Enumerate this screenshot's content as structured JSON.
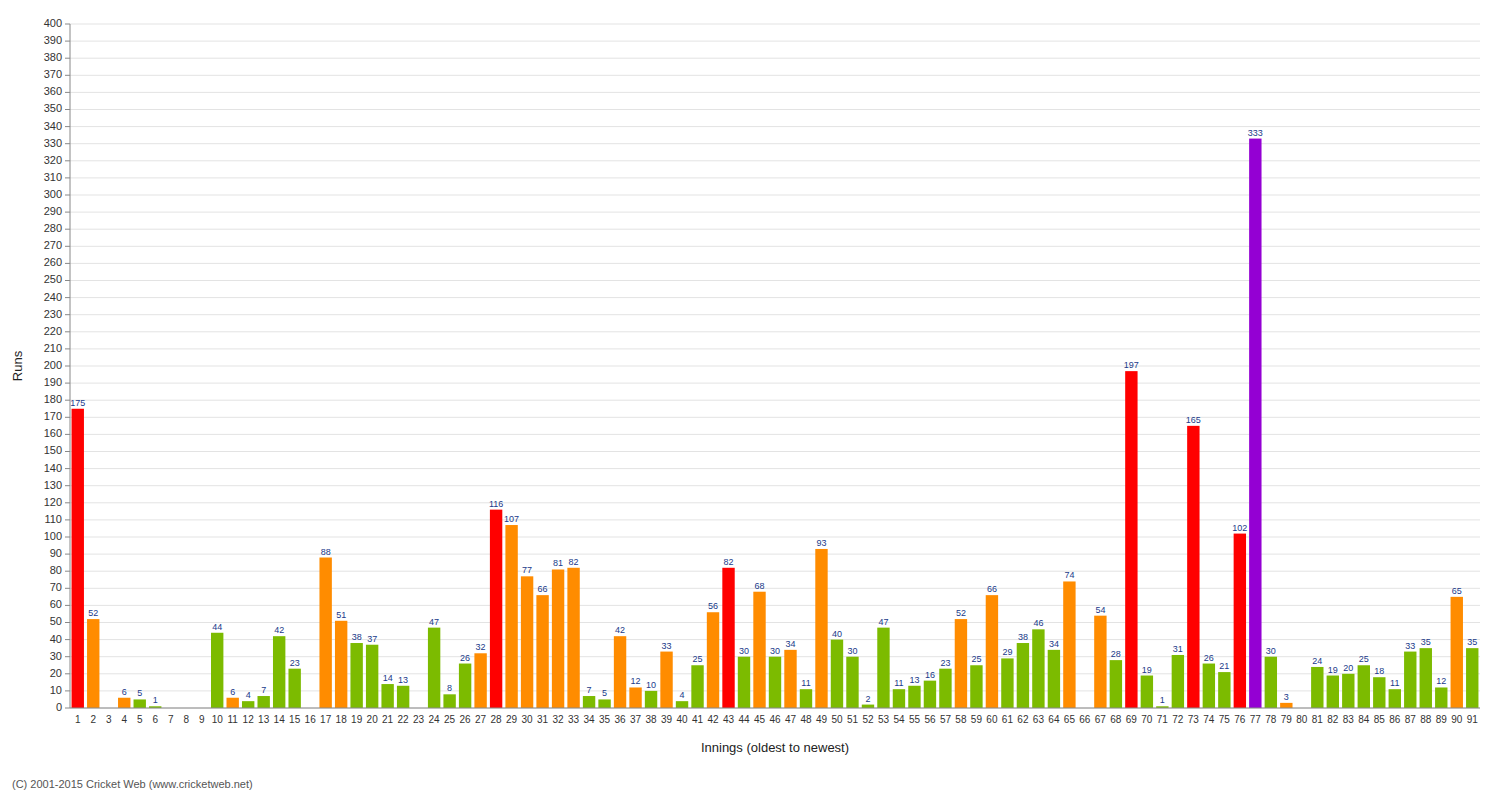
{
  "chart_data": {
    "type": "bar",
    "xlabel": "Innings (oldest to newest)",
    "ylabel": "Runs",
    "annotations": [
      "(C) 2001-2015 Cricket Web (www.cricketweb.net)"
    ],
    "categories": [
      "1",
      "2",
      "3",
      "4",
      "5",
      "6",
      "7",
      "8",
      "9",
      "10",
      "11",
      "12",
      "13",
      "14",
      "15",
      "16",
      "17",
      "18",
      "19",
      "20",
      "21",
      "22",
      "23",
      "24",
      "25",
      "26",
      "27",
      "28",
      "29",
      "30",
      "31",
      "32",
      "33",
      "34",
      "35",
      "36",
      "37",
      "38",
      "39",
      "40",
      "41",
      "42",
      "43",
      "44",
      "45",
      "46",
      "47",
      "48",
      "49",
      "50",
      "51",
      "52",
      "53",
      "54",
      "55",
      "56",
      "57",
      "58",
      "59",
      "60",
      "61",
      "62",
      "63",
      "64",
      "65",
      "66",
      "67",
      "68",
      "69",
      "70",
      "71",
      "72",
      "73",
      "74",
      "75",
      "76",
      "77",
      "78",
      "79",
      "80",
      "81",
      "82",
      "83",
      "84",
      "85",
      "86",
      "87",
      "88",
      "89",
      "90",
      "91"
    ],
    "values": [
      175,
      52,
      0,
      6,
      5,
      1,
      0,
      0,
      0,
      44,
      6,
      4,
      7,
      42,
      23,
      0,
      88,
      51,
      38,
      37,
      14,
      13,
      0,
      47,
      8,
      26,
      32,
      116,
      107,
      77,
      66,
      81,
      82,
      7,
      5,
      42,
      12,
      10,
      33,
      4,
      25,
      56,
      82,
      30,
      68,
      30,
      34,
      11,
      93,
      40,
      30,
      2,
      47,
      11,
      13,
      16,
      23,
      52,
      25,
      66,
      29,
      38,
      46,
      34,
      74,
      0,
      54,
      28,
      197,
      19,
      1,
      31,
      165,
      26,
      21,
      102,
      333,
      30,
      3,
      0,
      24,
      19,
      20,
      25,
      18,
      11,
      33,
      35,
      12,
      65,
      35
    ],
    "colors": [
      "#ff0000",
      "#ff8c00",
      "#7cbb00",
      "#ff8c00",
      "#7cbb00",
      "#7cbb00",
      "#7cbb00",
      "#7cbb00",
      "#7cbb00",
      "#7cbb00",
      "#ff8c00",
      "#7cbb00",
      "#7cbb00",
      "#7cbb00",
      "#7cbb00",
      "#7cbb00",
      "#ff8c00",
      "#ff8c00",
      "#7cbb00",
      "#7cbb00",
      "#7cbb00",
      "#7cbb00",
      "#7cbb00",
      "#7cbb00",
      "#7cbb00",
      "#7cbb00",
      "#ff8c00",
      "#ff0000",
      "#ff8c00",
      "#ff8c00",
      "#ff8c00",
      "#ff8c00",
      "#ff8c00",
      "#7cbb00",
      "#7cbb00",
      "#ff8c00",
      "#ff8c00",
      "#7cbb00",
      "#ff8c00",
      "#7cbb00",
      "#7cbb00",
      "#ff8c00",
      "#ff0000",
      "#7cbb00",
      "#ff8c00",
      "#7cbb00",
      "#ff8c00",
      "#7cbb00",
      "#ff8c00",
      "#7cbb00",
      "#7cbb00",
      "#7cbb00",
      "#7cbb00",
      "#7cbb00",
      "#7cbb00",
      "#7cbb00",
      "#7cbb00",
      "#ff8c00",
      "#7cbb00",
      "#ff8c00",
      "#7cbb00",
      "#7cbb00",
      "#7cbb00",
      "#7cbb00",
      "#ff8c00",
      "#7cbb00",
      "#ff8c00",
      "#7cbb00",
      "#ff0000",
      "#7cbb00",
      "#7cbb00",
      "#7cbb00",
      "#ff0000",
      "#7cbb00",
      "#7cbb00",
      "#ff0000",
      "#9400d3",
      "#7cbb00",
      "#ff8c00",
      "#7cbb00",
      "#7cbb00",
      "#7cbb00",
      "#7cbb00",
      "#7cbb00",
      "#7cbb00",
      "#7cbb00",
      "#7cbb00",
      "#7cbb00",
      "#7cbb00",
      "#ff8c00",
      "#7cbb00"
    ],
    "ylim": [
      0,
      400
    ],
    "yticks": [
      0,
      10,
      20,
      30,
      40,
      50,
      60,
      70,
      80,
      90,
      100,
      110,
      120,
      130,
      140,
      150,
      160,
      170,
      180,
      190,
      200,
      210,
      220,
      230,
      240,
      250,
      260,
      270,
      280,
      290,
      300,
      310,
      320,
      330,
      340,
      350,
      360,
      370,
      380,
      390,
      400
    ],
    "grid": true,
    "data_labels": true
  }
}
